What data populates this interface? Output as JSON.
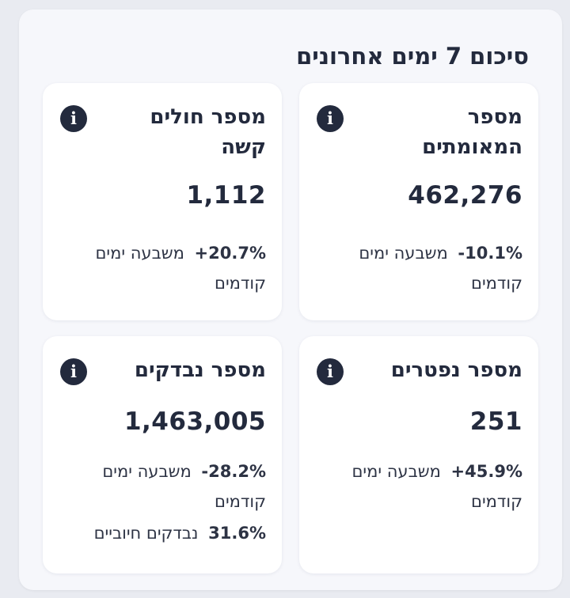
{
  "title": "סיכום 7 ימים אחרונים",
  "info_glyph": "i",
  "cards": [
    {
      "title": "מספר המאומתים",
      "value": "462,276",
      "change": "-10.1%",
      "change_label": "משבעה ימים קודמים"
    },
    {
      "title": "מספר חולים קשה",
      "value": "1,112",
      "change": "+20.7%",
      "change_label": "משבעה ימים קודמים"
    },
    {
      "title": "מספר נפטרים",
      "value": "251",
      "change": "+45.9%",
      "change_label": "משבעה ימים קודמים"
    },
    {
      "title": "מספר נבדקים",
      "value": "1,463,005",
      "change": "-28.2%",
      "change_label": "משבעה ימים קודמים",
      "extra_value": "31.6%",
      "extra_label": "נבדקים חיוביים"
    }
  ]
}
